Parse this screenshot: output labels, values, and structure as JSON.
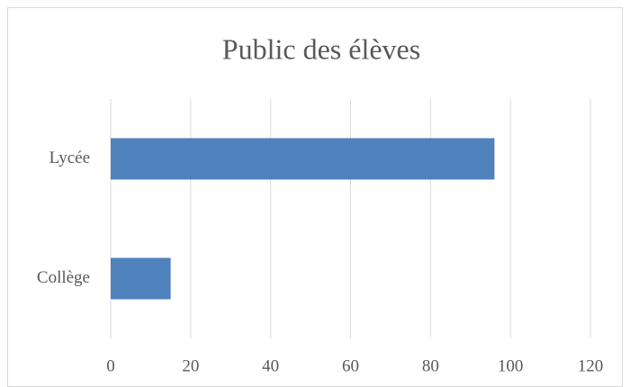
{
  "chart_data": {
    "type": "barh",
    "title": "Public des élèves",
    "categories": [
      "Lycée",
      "Collège"
    ],
    "values": [
      96,
      15
    ],
    "color": "#4f81bd",
    "xlim": [
      0,
      120
    ],
    "xticks": [
      0,
      20,
      40,
      60,
      80,
      100,
      120
    ],
    "grid": true
  }
}
